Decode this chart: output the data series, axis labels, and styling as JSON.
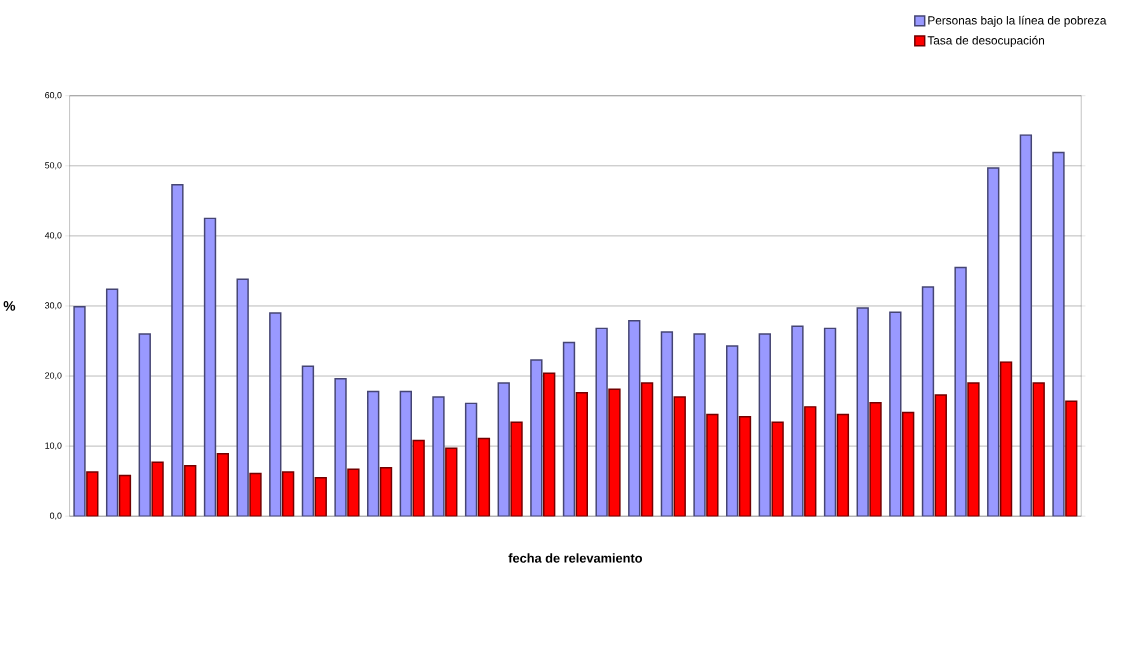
{
  "chart_data": {
    "type": "bar",
    "xlabel": "fecha de relevamiento",
    "ylabel": "%",
    "categories": [
      null,
      null,
      null,
      null,
      null,
      null,
      null,
      null,
      null,
      null,
      null,
      null,
      null,
      null,
      null,
      null,
      null,
      null,
      null,
      null,
      null,
      null,
      null,
      null,
      null,
      null,
      null,
      null,
      null,
      null,
      null
    ],
    "series": [
      {
        "name": "Personas  bajo la línea de pobreza",
        "color": "#9999ff",
        "values": [
          29.9,
          32.4,
          26.0,
          47.3,
          42.5,
          33.8,
          29.0,
          21.4,
          19.6,
          17.8,
          17.8,
          17.0,
          16.1,
          19.0,
          22.3,
          24.8,
          26.8,
          27.9,
          26.3,
          26.0,
          24.3,
          26.0,
          27.1,
          26.8,
          29.7,
          29.1,
          32.7,
          35.5,
          49.7,
          54.4,
          51.9
        ]
      },
      {
        "name": "Tasa de  desocupación",
        "color": "#ff0000",
        "values": [
          6.3,
          5.8,
          7.7,
          7.2,
          8.9,
          6.1,
          6.3,
          5.5,
          6.7,
          6.9,
          10.8,
          9.7,
          11.1,
          13.4,
          20.4,
          17.6,
          18.1,
          19.0,
          17.0,
          14.5,
          14.2,
          13.4,
          15.6,
          14.5,
          16.2,
          14.8,
          17.3,
          19.0,
          22.0,
          19.0,
          16.4
        ]
      }
    ],
    "ylim": [
      0,
      60
    ],
    "yticks": [
      {
        "value": 0,
        "label": "0,0"
      },
      {
        "value": 10,
        "label": "10,0"
      },
      {
        "value": 20,
        "label": "20,0"
      },
      {
        "value": 30,
        "label": "30,0"
      },
      {
        "value": 40,
        "label": "40,0"
      },
      {
        "value": 50,
        "label": "50,0"
      },
      {
        "value": 60,
        "label": "60,0"
      }
    ],
    "grid": "y",
    "legend": "top right"
  }
}
